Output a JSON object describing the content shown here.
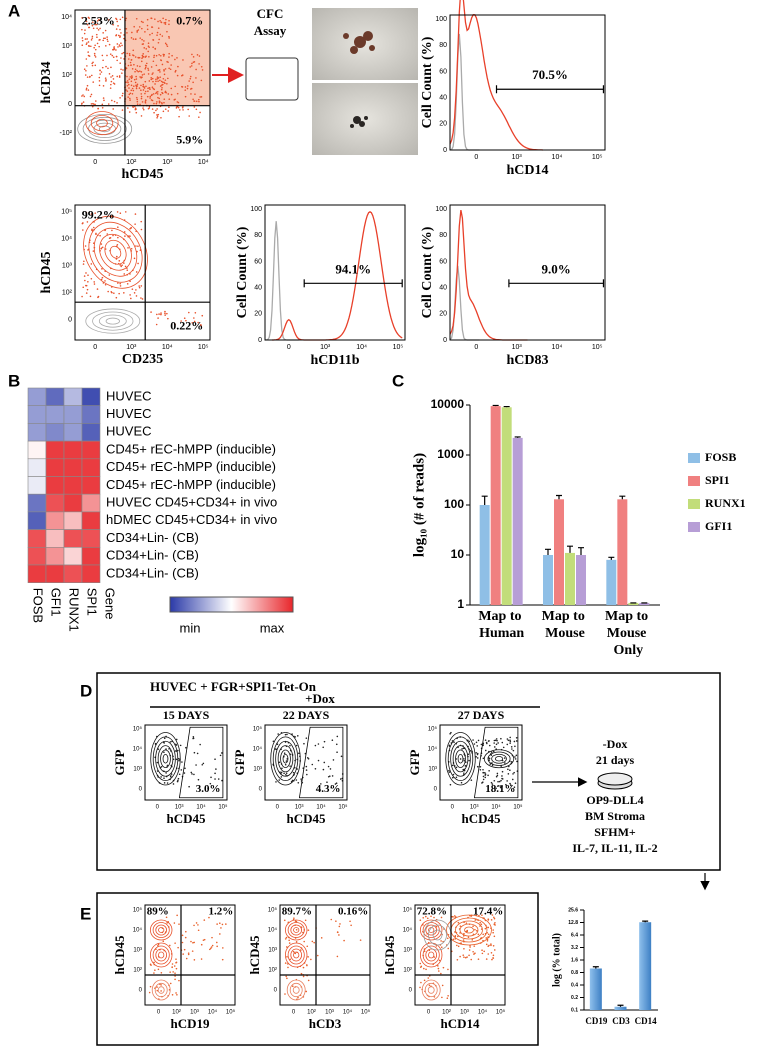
{
  "panel_labels": [
    "A",
    "B",
    "C",
    "D",
    "E"
  ],
  "panel_a": {
    "cfc_title": "CFC",
    "cfc_subtitle": "Assay",
    "flow_plots": [
      {
        "x_label": "hCD45",
        "y_label": "hCD34",
        "x_ticks": [
          "0",
          "10²",
          "10³",
          "10⁴"
        ],
        "y_ticks": [
          "-10²",
          "0",
          "10²",
          "10³",
          "10⁴"
        ],
        "gates": [
          "2.53%",
          "0.7%",
          "5.9%"
        ]
      },
      {
        "x_label": "CD235",
        "y_label": "hCD45",
        "x_ticks": [
          "0",
          "10³",
          "10⁴",
          "10⁵"
        ],
        "y_ticks": [
          "0",
          "10²",
          "10³",
          "10⁴",
          "10⁵"
        ],
        "gates": [
          "99.2%",
          "0.22%"
        ]
      }
    ],
    "histograms": [
      {
        "x_label": "hCD14",
        "y_label": "Cell Count (%)",
        "x_ticks": [
          "0",
          "10³",
          "10⁴",
          "10⁵"
        ],
        "y_ticks": [
          "0",
          "20",
          "40",
          "60",
          "80",
          "100"
        ],
        "gate": "70.5%"
      },
      {
        "x_label": "hCD11b",
        "y_label": "Cell Count (%)",
        "x_ticks": [
          "0",
          "10³",
          "10⁴",
          "10⁵"
        ],
        "y_ticks": [
          "0",
          "20",
          "40",
          "60",
          "80",
          "100"
        ],
        "gate": "94.1%"
      },
      {
        "x_label": "hCD83",
        "y_label": "Cell Count (%)",
        "x_ticks": [
          "0",
          "10³",
          "10⁴",
          "10⁵"
        ],
        "y_ticks": [
          "0",
          "20",
          "40",
          "60",
          "80",
          "100"
        ],
        "gate": "9.0%"
      }
    ]
  },
  "panel_d": {
    "header": "HUVEC + FGR+SPI1-Tet-On",
    "treatment": "+Dox",
    "flow_plots": [
      {
        "day": "15 DAYS",
        "gate": "3.0%",
        "x_label": "hCD45",
        "y_label": "GFP",
        "x_ticks": [
          "0",
          "10³",
          "10⁴",
          "10⁵"
        ],
        "y_ticks": [
          "0",
          "10³",
          "10⁴",
          "10⁵"
        ]
      },
      {
        "day": "22 DAYS",
        "gate": "4.3%",
        "x_label": "hCD45",
        "y_label": "GFP",
        "x_ticks": [
          "0",
          "10³",
          "10⁴",
          "10⁵"
        ],
        "y_ticks": [
          "0",
          "10³",
          "10⁴",
          "10⁵"
        ]
      },
      {
        "day": "27 DAYS",
        "gate": "18.1%",
        "x_label": "hCD45",
        "y_label": "GFP",
        "x_ticks": [
          "0",
          "10³",
          "10⁴",
          "10⁵"
        ],
        "y_ticks": [
          "0",
          "10³",
          "10⁴",
          "10⁵"
        ]
      }
    ],
    "protocol_top": [
      "-Dox",
      "21 days"
    ],
    "protocol_bottom": [
      "OP9-DLL4",
      "BM Stroma",
      "SFHM+",
      "IL-7, IL-11, IL-2"
    ]
  },
  "panel_e": {
    "flow_plots": [
      {
        "x_label": "hCD19",
        "y_label": "hCD45",
        "x_ticks": [
          "0",
          "10²",
          "10³",
          "10⁴",
          "10⁵"
        ],
        "y_ticks": [
          "0",
          "10²",
          "10³",
          "10⁴",
          "10⁵"
        ],
        "gates": [
          "89%",
          "1.2%"
        ]
      },
      {
        "x_label": "hCD3",
        "y_label": "hCD45",
        "x_ticks": [
          "0",
          "10²",
          "10³",
          "10⁴",
          "10⁵"
        ],
        "y_ticks": [
          "0",
          "10²",
          "10³",
          "10⁴",
          "10⁵"
        ],
        "gates": [
          "89.7%",
          "0.16%"
        ]
      },
      {
        "x_label": "hCD14",
        "y_label": "hCD45",
        "x_ticks": [
          "0",
          "10²",
          "10³",
          "10⁴",
          "10⁵"
        ],
        "y_ticks": [
          "0",
          "10²",
          "10³",
          "10⁴",
          "10⁵"
        ],
        "gates": [
          "72.8%",
          "17.4%"
        ]
      }
    ]
  },
  "chart_data": [
    {
      "type": "heatmap",
      "rows": [
        "HUVEC",
        "HUVEC",
        "HUVEC",
        "CD45+ rEC-hMPP (inducible)",
        "CD45+ rEC-hMPP (inducible)",
        "CD45+ rEC-hMPP (inducible)",
        "HUVEC CD45+CD34+ in vivo",
        "hDMEC CD45+CD34+ in vivo",
        "CD34+Lin- (CB)",
        "CD34+Lin- (CB)",
        "CD34+Lin- (CB)"
      ],
      "columns": [
        "FOSB",
        "GFI1",
        "RUNX1",
        "SPI1"
      ],
      "column_title": "Gene",
      "values": [
        [
          -0.5,
          -0.75,
          -0.35,
          -0.9
        ],
        [
          -0.5,
          -0.5,
          -0.5,
          -0.7
        ],
        [
          -0.5,
          -0.6,
          -0.5,
          -0.8
        ],
        [
          0.05,
          0.9,
          0.9,
          0.9
        ],
        [
          -0.1,
          0.9,
          0.9,
          0.9
        ],
        [
          -0.1,
          0.9,
          0.9,
          0.9
        ],
        [
          -0.7,
          0.8,
          0.9,
          0.5
        ],
        [
          -0.8,
          0.5,
          0.3,
          0.9
        ],
        [
          0.8,
          0.3,
          0.8,
          0.8
        ],
        [
          0.8,
          0.5,
          0.2,
          0.9
        ],
        [
          0.9,
          0.9,
          0.8,
          0.9
        ]
      ],
      "clim": [
        -1,
        1
      ],
      "colors": [
        "#2b3aa8",
        "#ffffff",
        "#e8262b"
      ],
      "colorbar_labels": [
        "min",
        "max"
      ]
    },
    {
      "type": "bar",
      "y_label": "log₁₀ (# of reads)",
      "categories": [
        "Map to Human",
        "Map to Mouse",
        "Map to Mouse Only"
      ],
      "series": [
        {
          "name": "FOSB",
          "color": "#8fbfe6",
          "values": [
            100,
            10,
            8
          ],
          "errors": [
            50,
            3,
            1
          ]
        },
        {
          "name": "SPI1",
          "color": "#f08080",
          "values": [
            9500,
            130,
            130
          ],
          "errors": [
            300,
            25,
            20
          ]
        },
        {
          "name": "RUNX1",
          "color": "#c2dd7a",
          "values": [
            9000,
            11,
            1.1
          ],
          "errors": [
            300,
            4,
            0
          ]
        },
        {
          "name": "GFI1",
          "color": "#b79ed6",
          "values": [
            2200,
            10,
            1.1
          ],
          "errors": [
            100,
            4,
            0
          ]
        }
      ],
      "log_scale": true,
      "ylim": [
        1,
        10000
      ],
      "yticks": [
        1,
        10,
        100,
        1000,
        10000
      ],
      "legend": "right"
    },
    {
      "type": "bar",
      "y_label": "log (% total)",
      "categories": [
        "CD19",
        "CD3",
        "CD14"
      ],
      "series": [
        {
          "color": "#5b9bd5",
          "values": [
            1.0,
            0.12,
            13
          ],
          "errors": [
            0.1,
            0.01,
            0.8
          ]
        }
      ],
      "log_scale": true,
      "ylim": [
        0.1,
        25.6
      ],
      "yticks": [
        0.1,
        0.2,
        0.4,
        0.8,
        1.6,
        3.2,
        6.4,
        12.8,
        25.6
      ]
    }
  ]
}
